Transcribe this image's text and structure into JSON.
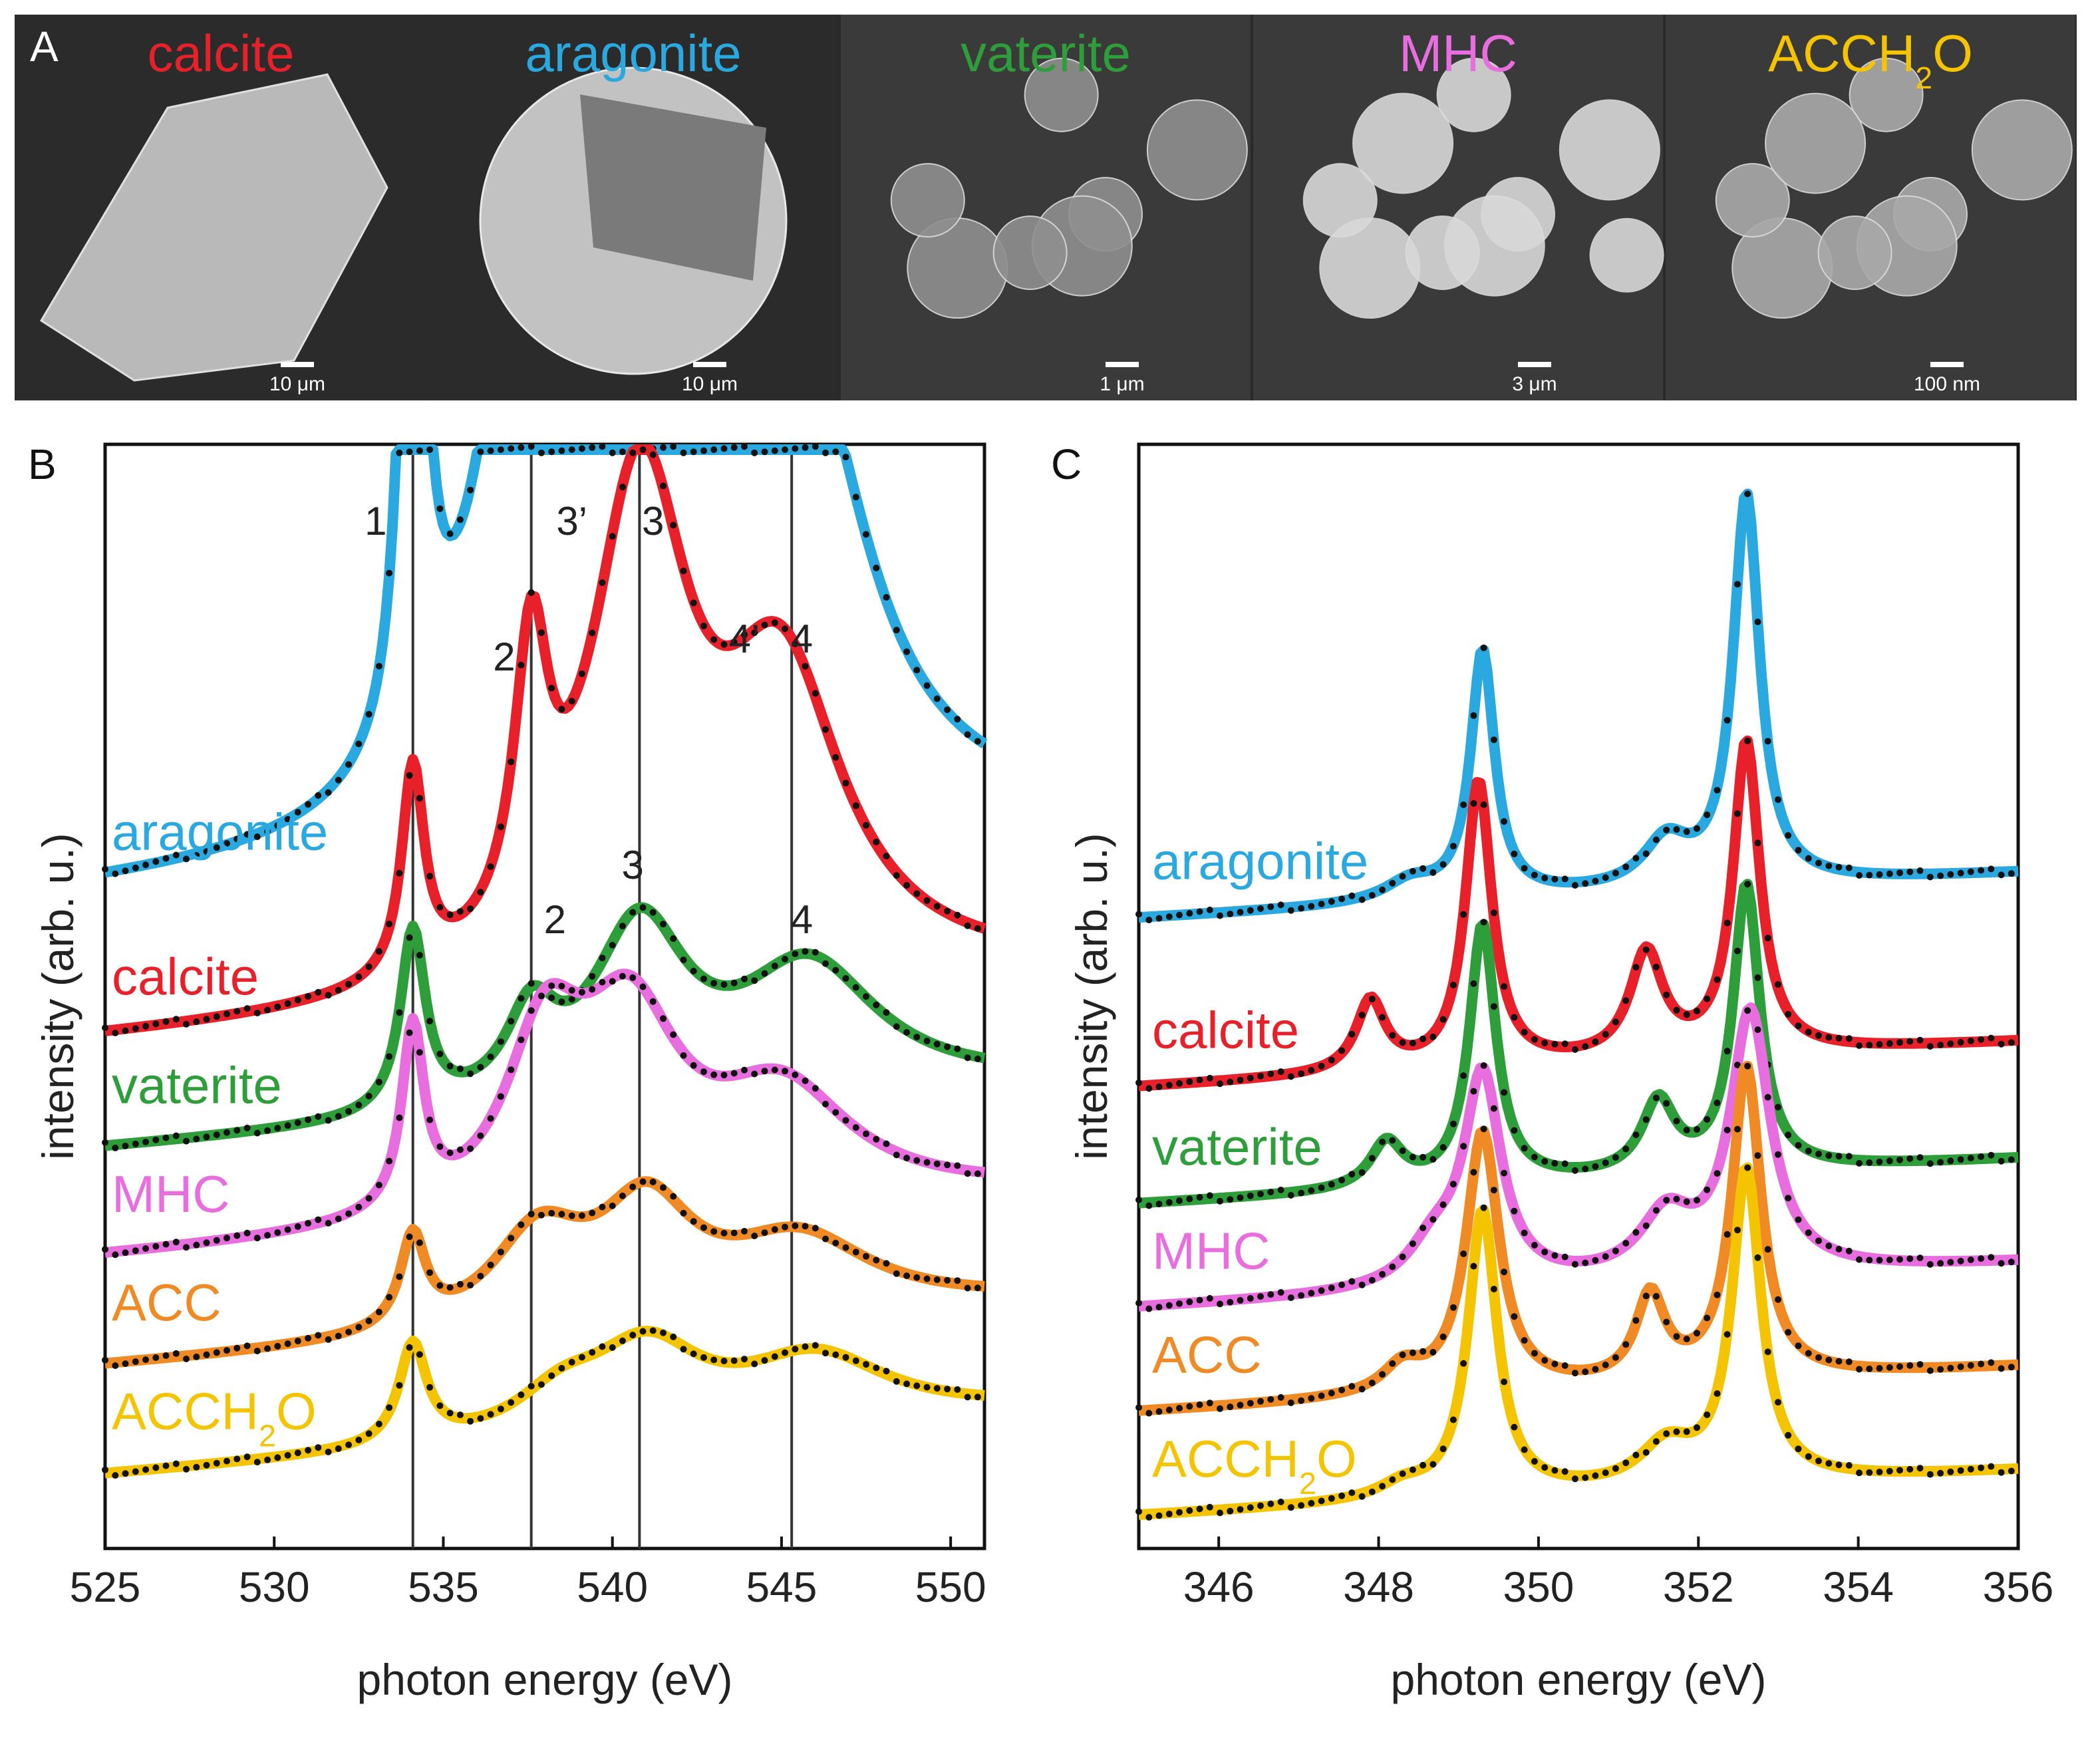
{
  "panels": [
    {
      "id": "A",
      "letter": "A"
    },
    {
      "id": "B",
      "letter": "B"
    },
    {
      "id": "C",
      "letter": "C"
    }
  ],
  "sem_images": [
    {
      "title": "calcite",
      "color": "#e8202a",
      "scale_bar": "10 μm",
      "shade": "#b9b9b9"
    },
    {
      "title": "aragonite",
      "color": "#2aa8e0",
      "scale_bar": "10 μm",
      "shade": "#c2c2c2"
    },
    {
      "title": "vaterite",
      "color": "#2e9e3a",
      "scale_bar": "1 μm",
      "shade": "#8f8f8f"
    },
    {
      "title": "MHC",
      "color": "#e86ee0",
      "scale_bar": "3 μm",
      "shade": "#d8d8d8"
    },
    {
      "title_main": "ACCH",
      "title_sub": "2",
      "title_end": "O",
      "color": "#f5c400",
      "scale_bar": "100 nm",
      "shade": "#a9a9a9"
    }
  ],
  "chart_data": [
    {
      "panel": "B",
      "type": "line",
      "xlabel": "photon energy (eV)",
      "ylabel": "intensity (arb. u.)",
      "xlim": [
        525,
        551
      ],
      "xticks": [
        "525",
        "530",
        "535",
        "540",
        "545",
        "550"
      ],
      "series": [
        {
          "name": "aragonite",
          "color": "#2aa8e0",
          "baseline": 4.75,
          "peaks": [
            [
              534.1,
              0.35,
              4.85
            ],
            [
              537.4,
              1.4,
              2.2
            ],
            [
              539.5,
              2.0,
              3.6
            ],
            [
              544.2,
              1.8,
              2.1
            ],
            [
              546.0,
              2.2,
              1.4
            ]
          ]
        },
        {
          "name": "calcite",
          "color": "#e8202a",
          "baseline": 3.95,
          "peaks": [
            [
              534.1,
              0.4,
              1.15
            ],
            [
              537.6,
              0.6,
              1.5
            ],
            [
              540.8,
              1.8,
              2.7
            ],
            [
              545.0,
              2.2,
              1.6
            ]
          ]
        },
        {
          "name": "vaterite",
          "color": "#2e9e3a",
          "baseline": 3.35,
          "peaks": [
            [
              534.1,
              0.45,
              1.0
            ],
            [
              537.6,
              0.9,
              0.45
            ],
            [
              540.8,
              1.7,
              0.95
            ],
            [
              545.8,
              2.5,
              0.7
            ]
          ]
        },
        {
          "name": "MHC",
          "color": "#e86ee0",
          "baseline": 2.75,
          "peaks": [
            [
              534.1,
              0.4,
              1.0
            ],
            [
              538.0,
              1.4,
              0.9
            ],
            [
              540.5,
              1.8,
              1.0
            ],
            [
              545.0,
              2.5,
              0.6
            ]
          ]
        },
        {
          "name": "ACC",
          "color": "#f08a24",
          "baseline": 2.15,
          "peaks": [
            [
              534.1,
              0.45,
              0.5
            ],
            [
              537.8,
              1.7,
              0.5
            ],
            [
              541.0,
              1.7,
              0.6
            ],
            [
              545.5,
              2.6,
              0.4
            ]
          ]
        },
        {
          "name_main": "ACCH",
          "name_sub": "2",
          "name_end": "O",
          "color": "#f5c400",
          "baseline": 1.55,
          "peaks": [
            [
              534.1,
              0.5,
              0.55
            ],
            [
              538.5,
              1.6,
              0.2
            ],
            [
              541.0,
              2.0,
              0.45
            ],
            [
              546.0,
              2.6,
              0.35
            ]
          ]
        }
      ],
      "markers": [
        534.1,
        537.6,
        540.8,
        545.3
      ],
      "peak_labels": [
        {
          "text": "1",
          "x": 533.0,
          "y": 6.6
        },
        {
          "text": "2",
          "x": 536.8,
          "y": 5.85
        },
        {
          "text": "3’",
          "x": 538.8,
          "y": 6.6
        },
        {
          "text": "3",
          "x": 541.2,
          "y": 6.6
        },
        {
          "text": "4’",
          "x": 543.9,
          "y": 5.95
        },
        {
          "text": "4",
          "x": 545.6,
          "y": 5.95
        },
        {
          "text": "2",
          "x": 538.3,
          "y": 4.4
        },
        {
          "text": "3",
          "x": 540.6,
          "y": 4.7
        },
        {
          "text": "4",
          "x": 545.6,
          "y": 4.4
        }
      ]
    },
    {
      "panel": "C",
      "type": "line",
      "xlabel": "photon energy (eV)",
      "ylabel": "intensity (arb. u.)",
      "xlim": [
        345,
        356
      ],
      "xticks": [
        "346",
        "348",
        "350",
        "352",
        "354",
        "356"
      ],
      "series": [
        {
          "name": "aragonite",
          "color": "#2aa8e0",
          "baseline": 5.4,
          "peaks": [
            [
              349.3,
              0.18,
              1.9
            ],
            [
              352.6,
              0.2,
              3.0
            ],
            [
              348.4,
              0.4,
              0.15
            ],
            [
              351.6,
              0.35,
              0.35
            ]
          ]
        },
        {
          "name": "calcite",
          "color": "#e8202a",
          "baseline": 4.1,
          "peaks": [
            [
              347.9,
              0.22,
              0.55
            ],
            [
              349.25,
              0.2,
              2.2
            ],
            [
              351.35,
              0.25,
              0.8
            ],
            [
              352.6,
              0.2,
              2.4
            ]
          ]
        },
        {
          "name": "vaterite",
          "color": "#2e9e3a",
          "baseline": 3.2,
          "peaks": [
            [
              348.1,
              0.25,
              0.35
            ],
            [
              349.3,
              0.2,
              2.0
            ],
            [
              351.5,
              0.25,
              0.55
            ],
            [
              352.6,
              0.2,
              2.2
            ]
          ]
        },
        {
          "name": "MHC",
          "color": "#e86ee0",
          "baseline": 2.4,
          "peaks": [
            [
              348.7,
              0.4,
              0.3
            ],
            [
              349.3,
              0.28,
              1.6
            ],
            [
              351.6,
              0.4,
              0.45
            ],
            [
              352.65,
              0.3,
              2.0
            ]
          ]
        },
        {
          "name": "ACC",
          "color": "#f08a24",
          "baseline": 1.6,
          "peaks": [
            [
              348.3,
              0.3,
              0.2
            ],
            [
              349.3,
              0.25,
              2.0
            ],
            [
              351.4,
              0.22,
              0.65
            ],
            [
              352.6,
              0.22,
              2.4
            ]
          ]
        },
        {
          "name_main": "ACCH",
          "name_sub": "2",
          "name_end": "O",
          "color": "#f5c400",
          "baseline": 0.8,
          "peaks": [
            [
              348.3,
              0.35,
              0.1
            ],
            [
              349.3,
              0.22,
              2.2
            ],
            [
              351.6,
              0.4,
              0.3
            ],
            [
              352.6,
              0.22,
              2.4
            ]
          ]
        }
      ]
    }
  ]
}
